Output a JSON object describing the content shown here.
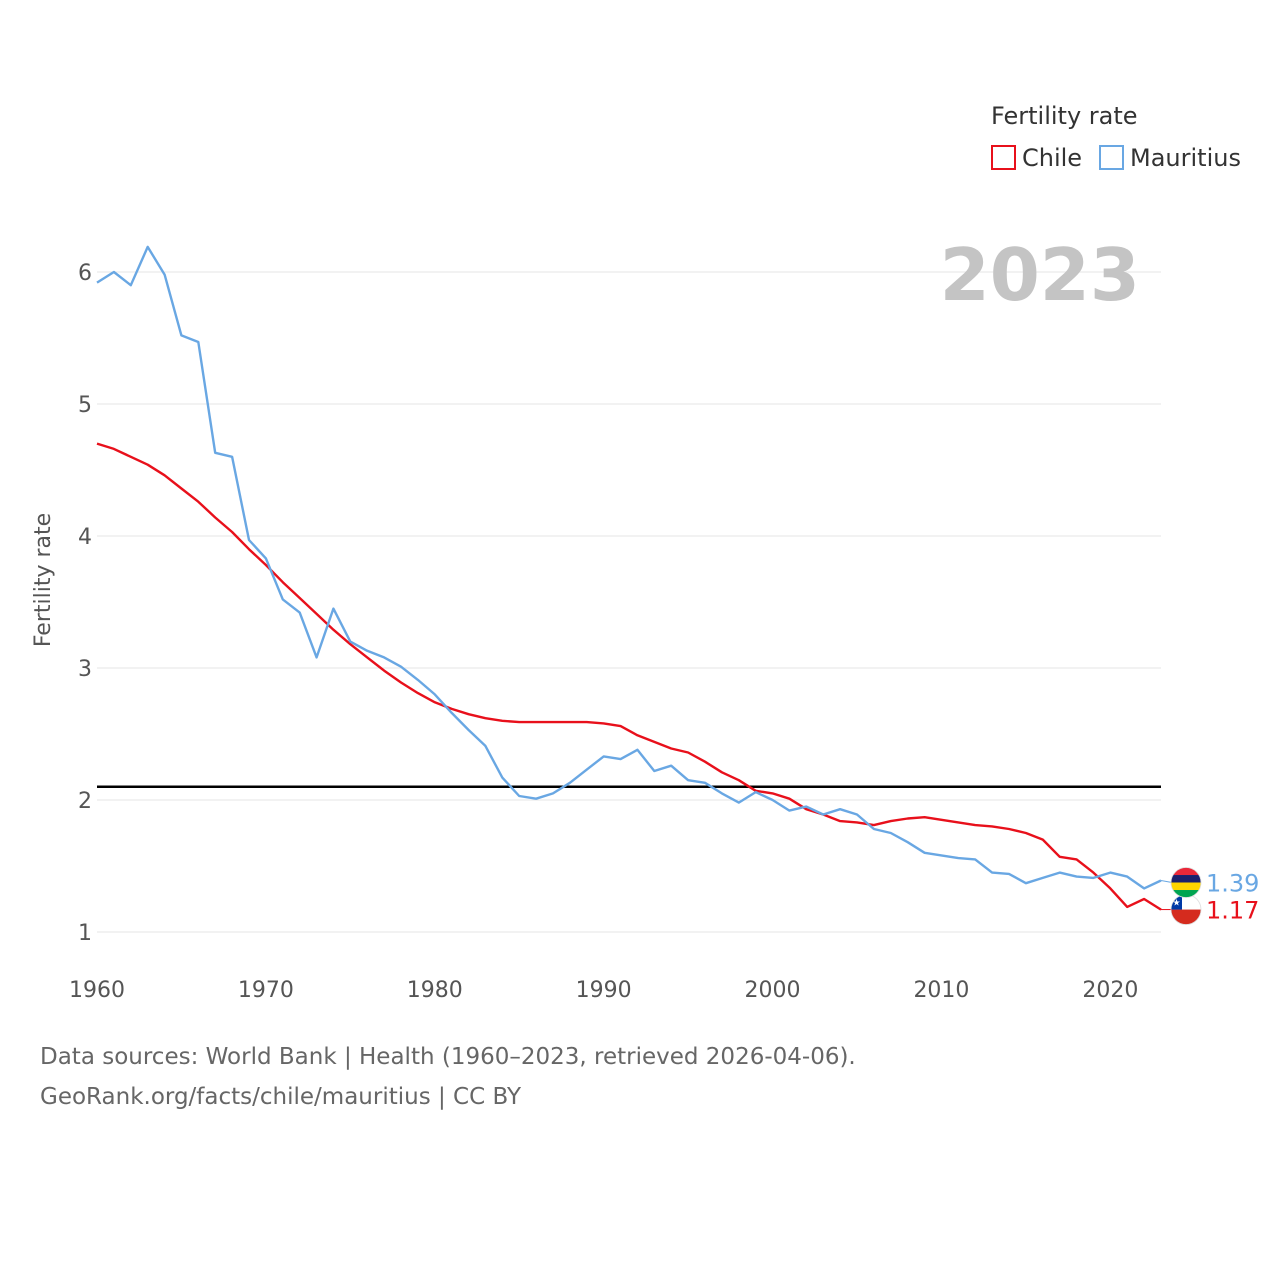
{
  "chart_data": {
    "type": "line",
    "title": "Fertility rate",
    "ylabel": "Fertility rate",
    "xlabel": "",
    "year_label": "2023",
    "xlim": [
      1960,
      2023
    ],
    "ylim": [
      0.7,
      6.4
    ],
    "x_ticks": [
      1960,
      1970,
      1980,
      1990,
      2000,
      2010,
      2020
    ],
    "y_ticks": [
      1,
      2,
      3,
      4,
      5,
      6
    ],
    "reference_line": {
      "value": 2.1,
      "color": "#000000"
    },
    "x": [
      1960,
      1961,
      1962,
      1963,
      1964,
      1965,
      1966,
      1967,
      1968,
      1969,
      1970,
      1971,
      1972,
      1973,
      1974,
      1975,
      1976,
      1977,
      1978,
      1979,
      1980,
      1981,
      1982,
      1983,
      1984,
      1985,
      1986,
      1987,
      1988,
      1989,
      1990,
      1991,
      1992,
      1993,
      1994,
      1995,
      1996,
      1997,
      1998,
      1999,
      2000,
      2001,
      2002,
      2003,
      2004,
      2005,
      2006,
      2007,
      2008,
      2009,
      2010,
      2011,
      2012,
      2013,
      2014,
      2015,
      2016,
      2017,
      2018,
      2019,
      2020,
      2021,
      2022,
      2023
    ],
    "series": [
      {
        "name": "Chile",
        "color": "#e8101b",
        "end_label": "1.17",
        "values": [
          4.7,
          4.66,
          4.6,
          4.54,
          4.46,
          4.36,
          4.26,
          4.14,
          4.03,
          3.9,
          3.78,
          3.65,
          3.53,
          3.41,
          3.29,
          3.18,
          3.08,
          2.98,
          2.89,
          2.81,
          2.74,
          2.69,
          2.65,
          2.62,
          2.6,
          2.59,
          2.59,
          2.59,
          2.59,
          2.59,
          2.58,
          2.56,
          2.49,
          2.44,
          2.39,
          2.36,
          2.29,
          2.21,
          2.15,
          2.07,
          2.05,
          2.01,
          1.93,
          1.89,
          1.84,
          1.83,
          1.81,
          1.84,
          1.86,
          1.87,
          1.85,
          1.83,
          1.81,
          1.8,
          1.78,
          1.75,
          1.7,
          1.57,
          1.55,
          1.45,
          1.33,
          1.19,
          1.25,
          1.17
        ]
      },
      {
        "name": "Mauritius",
        "color": "#69a7e3",
        "end_label": "1.39",
        "values": [
          5.92,
          6.0,
          5.9,
          6.19,
          5.98,
          5.52,
          5.47,
          4.63,
          4.6,
          3.97,
          3.83,
          3.52,
          3.42,
          3.08,
          3.45,
          3.2,
          3.13,
          3.08,
          3.01,
          2.91,
          2.8,
          2.66,
          2.53,
          2.41,
          2.17,
          2.03,
          2.01,
          2.05,
          2.13,
          2.23,
          2.33,
          2.31,
          2.38,
          2.22,
          2.26,
          2.15,
          2.13,
          2.05,
          1.98,
          2.06,
          2.0,
          1.92,
          1.95,
          1.89,
          1.93,
          1.89,
          1.78,
          1.75,
          1.68,
          1.6,
          1.58,
          1.56,
          1.55,
          1.45,
          1.44,
          1.37,
          1.41,
          1.45,
          1.42,
          1.41,
          1.45,
          1.42,
          1.33,
          1.39
        ]
      }
    ],
    "legend": {
      "title": "Fertility rate",
      "position": "top-right"
    }
  },
  "footer": {
    "line1": "Data sources: World Bank | Health (1960–2023, retrieved 2026-04-06).",
    "line2": "GeoRank.org/facts/chile/mauritius | CC BY"
  }
}
